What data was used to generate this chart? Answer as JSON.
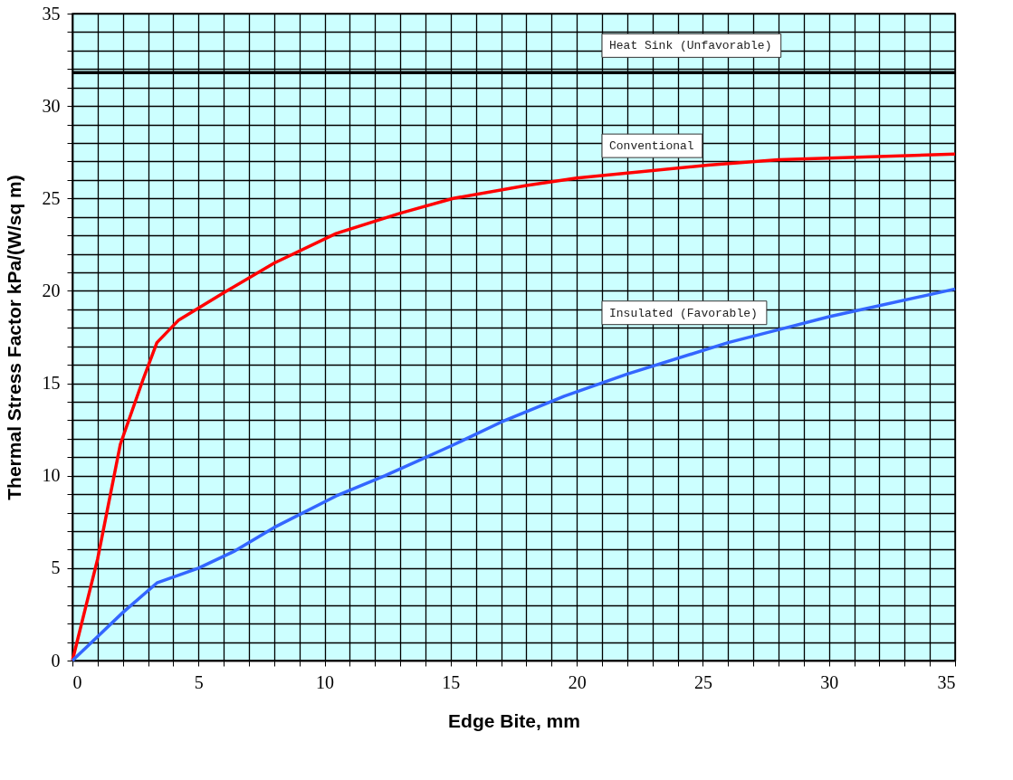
{
  "chart_data": {
    "type": "line",
    "xlabel": "Edge Bite, mm",
    "ylabel": "Thermal Stress Factor kPa/(W/sq m)",
    "xlim": [
      0,
      35
    ],
    "ylim": [
      0,
      35
    ],
    "xticks": [
      0,
      {
        "value": 1,
        "label": null
      },
      {
        "value": 2,
        "label": null
      },
      {
        "value": 3,
        "label": null
      },
      {
        "value": 4,
        "label": null
      },
      5,
      {
        "value": 6,
        "label": null
      },
      {
        "value": 7,
        "label": null
      },
      {
        "value": 8,
        "label": null
      },
      {
        "value": 9,
        "label": null
      },
      10,
      {
        "value": 11,
        "label": null
      },
      {
        "value": 12,
        "label": null
      },
      {
        "value": 13,
        "label": null
      },
      {
        "value": 14,
        "label": null
      },
      15,
      {
        "value": 16,
        "label": null
      },
      {
        "value": 17,
        "label": null
      },
      {
        "value": 18,
        "label": null
      },
      {
        "value": 19,
        "label": null
      },
      20,
      {
        "value": 21,
        "label": null
      },
      {
        "value": 22,
        "label": null
      },
      {
        "value": 23,
        "label": null
      },
      {
        "value": 24,
        "label": null
      },
      25,
      {
        "value": 26,
        "label": null
      },
      {
        "value": 27,
        "label": null
      },
      {
        "value": 28,
        "label": null
      },
      {
        "value": 29,
        "label": null
      },
      30,
      {
        "value": 31,
        "label": null
      },
      {
        "value": 32,
        "label": null
      },
      {
        "value": 33,
        "label": null
      },
      {
        "value": 34,
        "label": null
      },
      35
    ],
    "yticks": [
      0,
      {
        "value": 1,
        "label": null
      },
      {
        "value": 2,
        "label": null
      },
      {
        "value": 3,
        "label": null
      },
      {
        "value": 4,
        "label": null
      },
      5,
      {
        "value": 6,
        "label": null
      },
      {
        "value": 7,
        "label": null
      },
      {
        "value": 8,
        "label": null
      },
      {
        "value": 9,
        "label": null
      },
      10,
      {
        "value": 11,
        "label": null
      },
      {
        "value": 12,
        "label": null
      },
      {
        "value": 13,
        "label": null
      },
      {
        "value": 14,
        "label": null
      },
      15,
      {
        "value": 16,
        "label": null
      },
      {
        "value": 17,
        "label": null
      },
      {
        "value": 18,
        "label": null
      },
      {
        "value": 19,
        "label": null
      },
      20,
      {
        "value": 21,
        "label": null
      },
      {
        "value": 22,
        "label": null
      },
      {
        "value": 23,
        "label": null
      },
      {
        "value": 24,
        "label": null
      },
      25,
      {
        "value": 26,
        "label": null
      },
      {
        "value": 27,
        "label": null
      },
      {
        "value": 28,
        "label": null
      },
      {
        "value": 29,
        "label": null
      },
      30,
      {
        "value": 31,
        "label": null
      },
      {
        "value": 32,
        "label": null
      },
      {
        "value": 33,
        "label": null
      },
      {
        "value": 34,
        "label": null
      },
      35
    ],
    "grid": true,
    "marker": "none",
    "line_style": "solid",
    "series": [
      {
        "name": "Conventional",
        "color": "#ff0000",
        "x": [
          0,
          1,
          1.9,
          2.8,
          3.35,
          4.2,
          6,
          8,
          10.45,
          13,
          15.1,
          18,
          20,
          25.2,
          28,
          35
        ],
        "values": [
          0,
          5.5,
          11.7,
          15.2,
          17.2,
          18.4,
          19.9,
          21.5,
          23.1,
          24.2,
          25.0,
          25.7,
          26.1,
          26.8,
          27.1,
          27.4
        ]
      },
      {
        "name": "Insulated (Favorable)",
        "color": "#3366ff",
        "x": [
          0,
          1,
          2,
          3.35,
          5,
          6.4,
          8,
          10.45,
          12.4,
          15,
          17,
          19.5,
          22,
          26,
          28,
          30,
          35
        ],
        "values": [
          0,
          1.3,
          2.6,
          4.2,
          5.0,
          5.9,
          7.2,
          8.9,
          10.0,
          11.6,
          12.9,
          14.3,
          15.5,
          17.2,
          17.9,
          18.6,
          20.1
        ]
      }
    ],
    "ref_lines": [
      {
        "axis": "y",
        "value": 31.8,
        "label": "Heat Sink (Unfavorable)",
        "color": "#000000",
        "line_style": "solid"
      }
    ]
  }
}
